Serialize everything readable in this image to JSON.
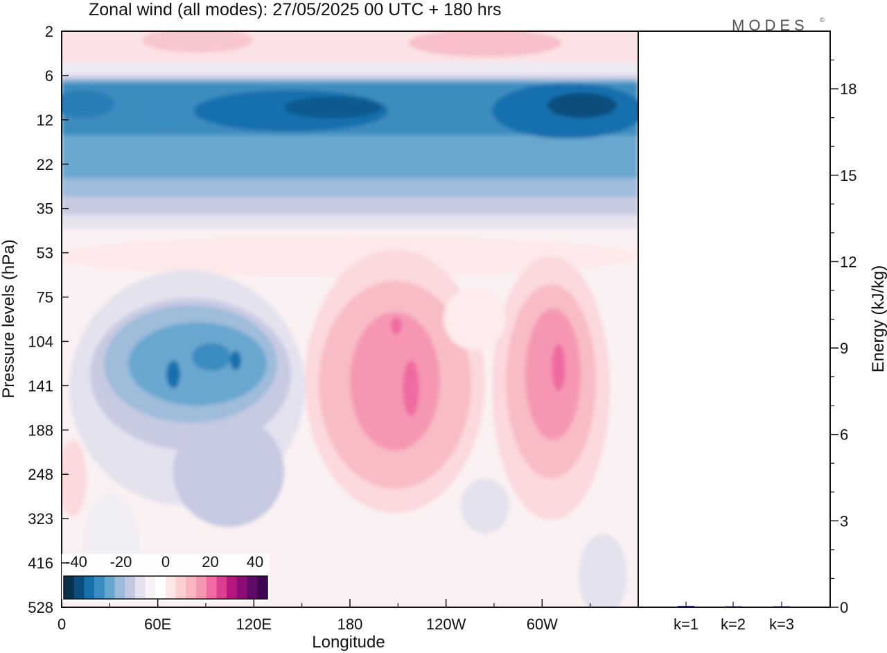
{
  "chart_data": {
    "type": "heatmap",
    "title": "Zonal wind (all modes):  27/05/2025  00 UTC  + 180 hrs",
    "logo": "MODES",
    "logo_mark": "©",
    "xlabel": "Longitude",
    "ylabel": "Pressure levels (hPa)",
    "xticks": [
      "0",
      "60E",
      "120E",
      "180",
      "120W",
      "60W"
    ],
    "yticks": [
      "2",
      "6",
      "12",
      "22",
      "35",
      "53",
      "75",
      "104",
      "141",
      "188",
      "248",
      "323",
      "416",
      "528"
    ],
    "colorbar": {
      "labels": [
        "-40",
        "-20",
        "0",
        "20",
        "40"
      ],
      "colors": [
        "#08304f",
        "#0b4e7e",
        "#1670ac",
        "#3b8cc0",
        "#66a7cf",
        "#9cbada",
        "#c3c8e1",
        "#e3e1ee",
        "#f8f2f7",
        "#ffffff",
        "#fde6e6",
        "#fbcfd2",
        "#f8b6c1",
        "#f497b3",
        "#ef6ba0",
        "#db3f90",
        "#b8157e",
        "#8c0b74",
        "#5e0a67",
        "#3f0752"
      ]
    },
    "features": [
      {
        "lon": 0,
        "p_top": 6,
        "p_bot": 35,
        "value": -20,
        "desc": "stratospheric easterly band"
      },
      {
        "lon": 75,
        "p": 12,
        "value": -35
      },
      {
        "lon": 160,
        "p": 12,
        "value": -38
      },
      {
        "lon": 275,
        "p": 12,
        "value": -40
      },
      {
        "lon": 80,
        "p": 141,
        "value": -28
      },
      {
        "lon": 190,
        "p": 141,
        "value": 26
      },
      {
        "lon": 295,
        "p": 141,
        "value": 28
      }
    ],
    "right_panel": {
      "ylabel": "Energy (kJ/kg)",
      "yticks": [
        "0",
        "3",
        "6",
        "9",
        "12",
        "15",
        "18"
      ],
      "ylim": [
        0,
        20
      ],
      "categories": [
        "k=1",
        "k=2",
        "k=3"
      ],
      "values": [
        0.05,
        0.02,
        0.02
      ],
      "bar_color": "#1f2a6e"
    }
  }
}
